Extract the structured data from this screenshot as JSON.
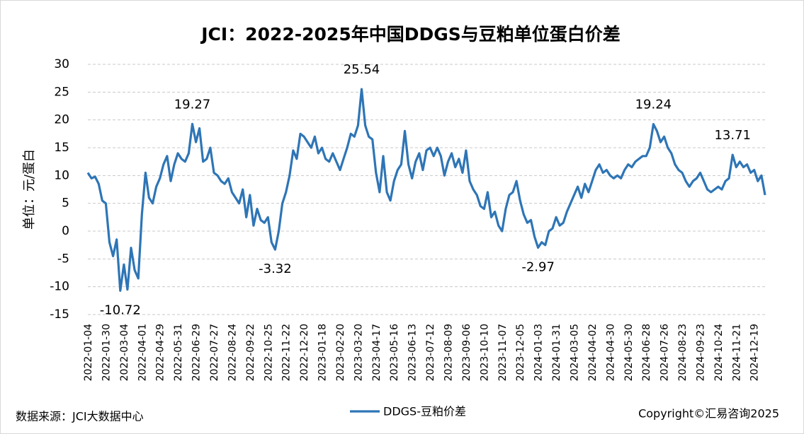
{
  "chart_data": {
    "type": "line",
    "title": "JCI：2022-2025年中国DDGS与豆粕单位蛋白价差",
    "y_label": "单位：元/蛋白",
    "source": "数据来源：JCI大数据中心",
    "copyright": "Copyright©汇易咨询2025",
    "ylim": [
      -15,
      30
    ],
    "yticks": [
      -15,
      -10,
      -5,
      0,
      5,
      10,
      15,
      20,
      25,
      30
    ],
    "grid": true,
    "label_colors": {
      "high": "#e8111a",
      "low": "#17a34a"
    },
    "categories": [
      "2022-01-04",
      null,
      null,
      null,
      null,
      "2022-01-30",
      null,
      null,
      null,
      null,
      "2022-03-04",
      null,
      null,
      null,
      null,
      "2022-04-01",
      null,
      null,
      null,
      null,
      "2022-04-29",
      null,
      null,
      null,
      null,
      "2022-05-31",
      null,
      null,
      null,
      null,
      "2022-06-29",
      null,
      null,
      null,
      null,
      "2022-07-27",
      null,
      null,
      null,
      null,
      "2022-08-24",
      null,
      null,
      null,
      null,
      "2022-09-22",
      null,
      null,
      null,
      null,
      "2022-10-25",
      null,
      null,
      null,
      null,
      "2022-11-22",
      null,
      null,
      null,
      null,
      "2022-12-20",
      null,
      null,
      null,
      null,
      "2023-01-18",
      null,
      null,
      null,
      null,
      "2023-02-20",
      null,
      null,
      null,
      null,
      "2023-03-20",
      null,
      null,
      null,
      null,
      "2023-04-17",
      null,
      null,
      null,
      null,
      "2023-05-16",
      null,
      null,
      null,
      null,
      "2023-06-13",
      null,
      null,
      null,
      null,
      "2023-07-12",
      null,
      null,
      null,
      null,
      "2023-08-09",
      null,
      null,
      null,
      null,
      "2023-09-06",
      null,
      null,
      null,
      null,
      "2023-10-10",
      null,
      null,
      null,
      null,
      "2023-11-07",
      null,
      null,
      null,
      null,
      "2023-12-05",
      null,
      null,
      null,
      null,
      "2024-01-03",
      null,
      null,
      null,
      null,
      "2024-01-31",
      null,
      null,
      null,
      null,
      "2024-03-05",
      null,
      null,
      null,
      null,
      "2024-04-02",
      null,
      null,
      null,
      null,
      "2024-04-30",
      null,
      null,
      null,
      null,
      "2024-05-30",
      null,
      null,
      null,
      null,
      "2024-06-28",
      null,
      null,
      null,
      null,
      "2024-07-26",
      null,
      null,
      null,
      null,
      "2024-08-23",
      null,
      null,
      null,
      null,
      "2024-09-23",
      null,
      null,
      null,
      null,
      "2024-10-24",
      null,
      null,
      null,
      null,
      "2024-11-21",
      null,
      null,
      null,
      null,
      "2024-12-19",
      null,
      null,
      null
    ],
    "series": [
      {
        "name": "DDGS-豆粕价差",
        "color": "#2e75b6",
        "values": [
          10.5,
          9.5,
          9.8,
          8.5,
          5.5,
          5,
          -2,
          -4.5,
          -1.5,
          -10.72,
          -6,
          -10.5,
          -3,
          -7,
          -8.5,
          3,
          10.5,
          6,
          5,
          8,
          9.5,
          12,
          13.5,
          9,
          12,
          14,
          13,
          12.5,
          14,
          19.27,
          16,
          18.5,
          12.5,
          13,
          15,
          10.5,
          10,
          9,
          8.5,
          9.5,
          7,
          6,
          5,
          7.5,
          2.5,
          6.5,
          1,
          4,
          2,
          1.5,
          2.5,
          -2,
          -3.32,
          0,
          5,
          7,
          10,
          14.5,
          13,
          17.5,
          17,
          16,
          15,
          17,
          14,
          15,
          13,
          12.5,
          14,
          12.5,
          11,
          13,
          15,
          17.5,
          17,
          19,
          25.54,
          19,
          17,
          16.5,
          10.5,
          7,
          13.5,
          7,
          5.5,
          9,
          11,
          12,
          18,
          12,
          9.5,
          12.5,
          14,
          11,
          14.5,
          15,
          13.5,
          15,
          13.5,
          10,
          12.5,
          14,
          11.5,
          13,
          10.5,
          14.5,
          9,
          7.5,
          6.5,
          4.5,
          4,
          7,
          2.5,
          3.5,
          1,
          0,
          4,
          6.5,
          7,
          9,
          5.5,
          3,
          1.5,
          2,
          -1,
          -2.97,
          -2,
          -2.5,
          0,
          0.5,
          2.5,
          1,
          1.5,
          3.5,
          5,
          6.5,
          8,
          6,
          8.5,
          7,
          9,
          11,
          12,
          10.5,
          11,
          10,
          9.5,
          10,
          9.5,
          11,
          12,
          11.5,
          12.5,
          13,
          13.5,
          13.5,
          15,
          19.24,
          18,
          16,
          17,
          15,
          14,
          12,
          11,
          10.5,
          9,
          8,
          9,
          9.5,
          10.5,
          9,
          7.5,
          7,
          7.5,
          8,
          7.5,
          9,
          9.5,
          13.71,
          11.5,
          12.5,
          11.5,
          12,
          10.5,
          11,
          9,
          10,
          6.5
        ],
        "value_labels": [
          null,
          null,
          null,
          null,
          null,
          null,
          null,
          null,
          null,
          "-10.72",
          null,
          null,
          null,
          null,
          null,
          null,
          null,
          null,
          null,
          null,
          null,
          null,
          null,
          null,
          null,
          null,
          null,
          null,
          null,
          "19.27",
          null,
          null,
          null,
          null,
          null,
          null,
          null,
          null,
          null,
          null,
          null,
          null,
          null,
          null,
          null,
          null,
          null,
          null,
          null,
          null,
          null,
          null,
          "-3.32",
          null,
          null,
          null,
          null,
          null,
          null,
          null,
          null,
          null,
          null,
          null,
          null,
          null,
          null,
          null,
          null,
          null,
          null,
          null,
          null,
          null,
          null,
          null,
          "25.54",
          null,
          null,
          null,
          null,
          null,
          null,
          null,
          null,
          null,
          null,
          null,
          null,
          null,
          null,
          null,
          null,
          null,
          null,
          null,
          null,
          null,
          null,
          null,
          null,
          null,
          null,
          null,
          null,
          null,
          null,
          null,
          null,
          null,
          null,
          null,
          null,
          null,
          null,
          null,
          null,
          null,
          null,
          null,
          null,
          null,
          null,
          null,
          null,
          "-2.97",
          null,
          null,
          null,
          null,
          null,
          null,
          null,
          null,
          null,
          null,
          null,
          null,
          null,
          null,
          null,
          null,
          null,
          null,
          null,
          null,
          null,
          null,
          null,
          null,
          null,
          null,
          null,
          null,
          null,
          null,
          null,
          "19.24",
          null,
          null,
          null,
          null,
          null,
          null,
          null,
          null,
          null,
          null,
          null,
          null,
          null,
          null,
          null,
          null,
          null,
          null,
          null,
          null,
          null,
          "13.71",
          null,
          null,
          null,
          null,
          null,
          null,
          null,
          null,
          null
        ]
      }
    ]
  }
}
